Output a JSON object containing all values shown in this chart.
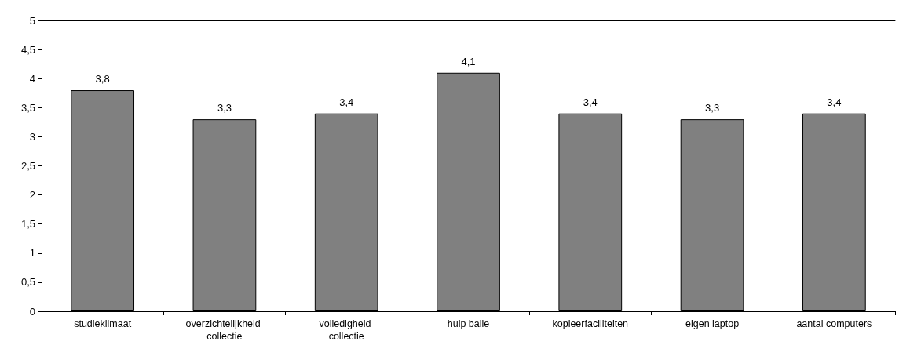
{
  "chart_data": {
    "type": "bar",
    "categories": [
      "studieklimaat",
      "overzichtelijkheid collectie",
      "volledigheid collectie",
      "hulp balie",
      "kopieerfaciliteiten",
      "eigen laptop",
      "aantal computers"
    ],
    "values": [
      3.8,
      3.3,
      3.4,
      4.1,
      3.4,
      3.3,
      3.4
    ],
    "value_labels": [
      "3,8",
      "3,3",
      "3,4",
      "4,1",
      "3,4",
      "3,3",
      "3,4"
    ],
    "color": "#808080",
    "ylim": [
      0,
      5
    ],
    "yticks": [
      0,
      {
        "value": 0.5,
        "label": "0,5"
      },
      1,
      {
        "value": 1.5,
        "label": "1,5"
      },
      2,
      {
        "value": 2.5,
        "label": "2,5"
      },
      3,
      {
        "value": 3.5,
        "label": "3,5"
      },
      4,
      {
        "value": 4.5,
        "label": "4,5"
      },
      5
    ],
    "grid": false
  }
}
